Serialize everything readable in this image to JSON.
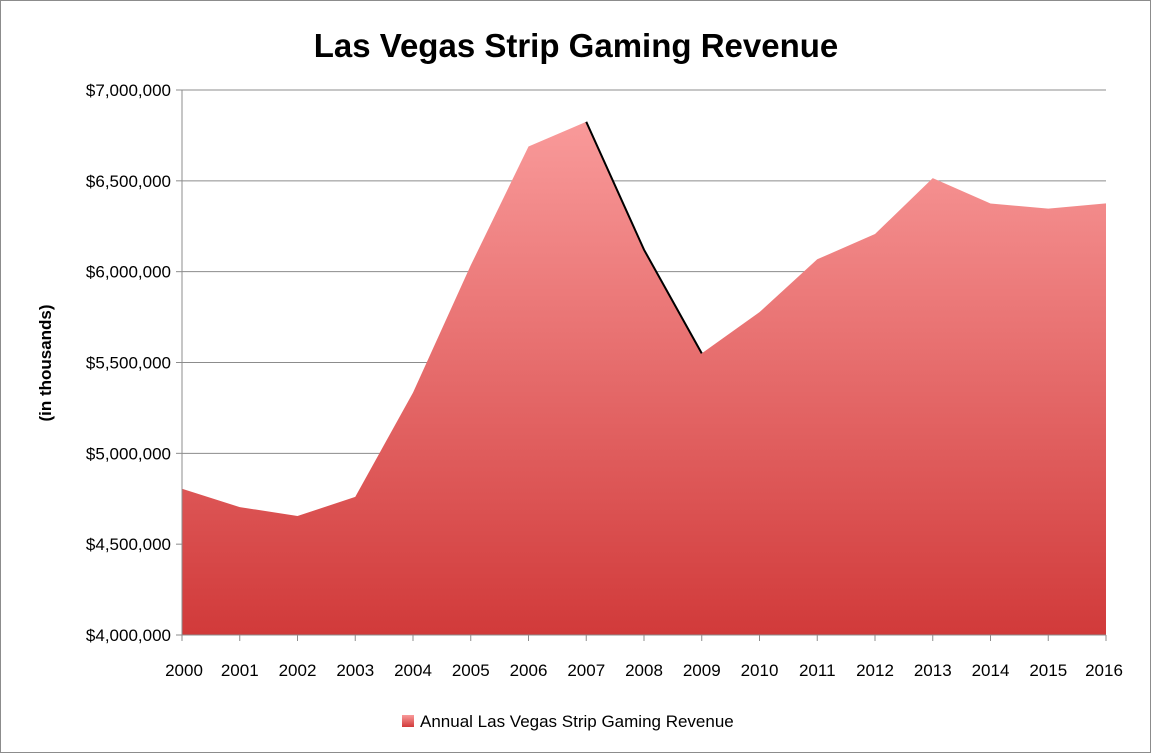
{
  "chart_data": {
    "type": "area",
    "title": "Las Vegas Strip Gaming Revenue",
    "xlabel": "",
    "ylabel": "(in thousands)",
    "categories": [
      "2000",
      "2001",
      "2002",
      "2003",
      "2004",
      "2005",
      "2006",
      "2007",
      "2008",
      "2009",
      "2010",
      "2011",
      "2012",
      "2013",
      "2014",
      "2015",
      "2016"
    ],
    "series": [
      {
        "name": "Annual Las Vegas Strip Gaming Revenue",
        "values": [
          4805000,
          4704000,
          4655000,
          4760000,
          5334000,
          6035000,
          6689000,
          6825000,
          6121000,
          5550000,
          5777000,
          6068000,
          6207000,
          6515000,
          6375000,
          6347000,
          6376000
        ]
      }
    ],
    "ylim": [
      4000000,
      7000000
    ],
    "yticks": [
      4000000,
      4500000,
      5000000,
      5500000,
      6000000,
      6500000,
      7000000
    ],
    "ytick_labels": [
      "$4,000,000",
      "$4,500,000",
      "$5,000,000",
      "$5,500,000",
      "$6,000,000",
      "$6,500,000",
      "$7,000,000"
    ],
    "grid": true,
    "legend_position": "bottom",
    "colors": {
      "fill_top": "#f99a9a",
      "fill_bottom": "#d13a3a",
      "gridline": "#8c8c8c",
      "highlight_line": "#000000"
    },
    "highlight_segment": {
      "from": "2007",
      "to": "2009"
    }
  }
}
